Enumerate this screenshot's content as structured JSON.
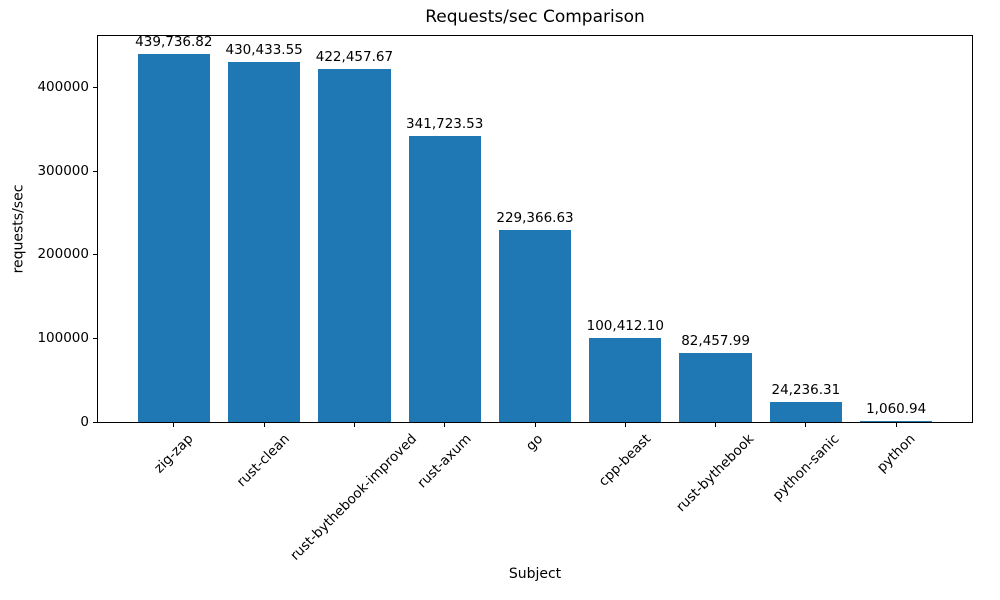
{
  "chart_data": {
    "type": "bar",
    "title": "Requests/sec Comparison",
    "xlabel": "Subject",
    "ylabel": "requests/sec",
    "categories": [
      "zig-zap",
      "rust-clean",
      "rust-bythebook-improved",
      "rust-axum",
      "go",
      "cpp-beast",
      "rust-bythebook",
      "python-sanic",
      "python"
    ],
    "values": [
      439736.82,
      430433.55,
      422457.67,
      341723.53,
      229366.63,
      100412.1,
      82457.99,
      24236.31,
      1060.94
    ],
    "value_labels": [
      "439,736.82",
      "430,433.55",
      "422,457.67",
      "341,723.53",
      "229,366.63",
      "100,412.10",
      "82,457.99",
      "24,236.31",
      "1,060.94"
    ],
    "y_ticks": [
      0,
      100000,
      200000,
      300000,
      400000
    ],
    "y_tick_labels": [
      "0",
      "100000",
      "200000",
      "300000",
      "400000"
    ],
    "ylim": [
      0,
      461723.66
    ],
    "bar_width_fraction": 0.8,
    "bar_color": "#1f77b4",
    "text_color": "#000000",
    "grid": false,
    "legend_position": "none"
  }
}
